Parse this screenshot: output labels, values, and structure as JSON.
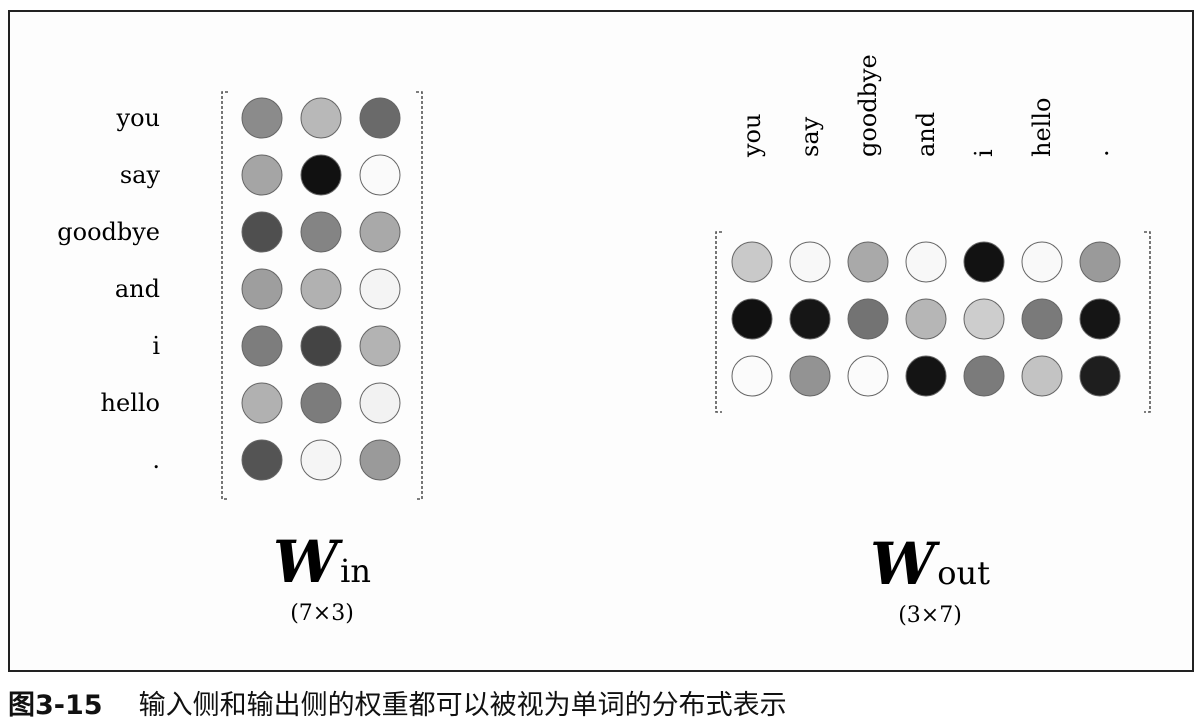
{
  "w_in": {
    "title_letter": "W",
    "subscript": "in",
    "shape": "(7×3)",
    "rows": [
      "you",
      "say",
      "goodbye",
      "and",
      "i",
      "hello",
      "."
    ],
    "colors": [
      [
        "#8b8b8b",
        "#b8b8b8",
        "#6a6a6a"
      ],
      [
        "#a5a5a5",
        "#111111",
        "#fafafa"
      ],
      [
        "#4f4f4f",
        "#848484",
        "#a9a9a9"
      ],
      [
        "#9e9e9e",
        "#b1b1b1",
        "#f4f4f4"
      ],
      [
        "#7d7d7d",
        "#444444",
        "#b3b3b3"
      ],
      [
        "#b1b1b1",
        "#7c7c7c",
        "#f2f2f2"
      ],
      [
        "#545454",
        "#f5f5f5",
        "#9a9a9a"
      ]
    ]
  },
  "w_out": {
    "title_letter": "W",
    "subscript": "out",
    "shape": "(3×7)",
    "columns": [
      "you",
      "say",
      "goodbye",
      "and",
      "i",
      "hello",
      "."
    ],
    "colors": [
      [
        "#c9c9c9",
        "#f8f8f8",
        "#a9a9a9",
        "#f8f8f8",
        "#121212",
        "#f9f9f9",
        "#9a9a9a"
      ],
      [
        "#111111",
        "#161616",
        "#737373",
        "#b6b6b6",
        "#cdcdcd",
        "#7a7a7a",
        "#151515"
      ],
      [
        "#fbfbfb",
        "#939393",
        "#fbfbfb",
        "#141414",
        "#7b7b7b",
        "#c3c3c3",
        "#1e1e1e"
      ]
    ]
  },
  "caption": {
    "number": "图3-15",
    "text": "输入侧和输出侧的权重都可以被视为单词的分布式表示"
  }
}
